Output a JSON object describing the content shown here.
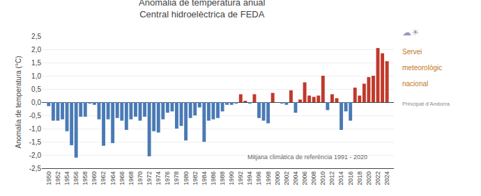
{
  "chart_data": {
    "type": "bar",
    "title": "Anomalia de temperatura anual",
    "subtitle": "Central hidroelèctrica de FEDA",
    "ylabel": "Anomalia de temperatura (°C)",
    "annotations": [
      "Mitjana climàtica de referència 1991 - 2020",
      "☁☀",
      "Servei",
      "meteorològic",
      "nacional",
      "Principat d’Andorra"
    ],
    "x": [
      1950,
      1951,
      1952,
      1953,
      1954,
      1955,
      1956,
      1957,
      1958,
      1959,
      1960,
      1961,
      1962,
      1963,
      1964,
      1965,
      1966,
      1967,
      1968,
      1969,
      1970,
      1971,
      1972,
      1973,
      1974,
      1975,
      1976,
      1977,
      1978,
      1979,
      1980,
      1981,
      1982,
      1983,
      1984,
      1985,
      1986,
      1987,
      1988,
      1989,
      1990,
      1991,
      1992,
      1993,
      1994,
      1995,
      1996,
      1997,
      1998,
      1999,
      2000,
      2001,
      2002,
      2003,
      2004,
      2005,
      2006,
      2007,
      2008,
      2009,
      2010,
      2011,
      2012,
      2013,
      2014,
      2015,
      2016,
      2017,
      2018,
      2019,
      2020,
      2021,
      2022,
      2023,
      2024
    ],
    "values": [
      -0.15,
      -0.7,
      -0.7,
      -0.65,
      -1.1,
      -1.63,
      -2.1,
      -0.55,
      -0.55,
      -0.05,
      -0.1,
      -0.65,
      -1.65,
      -0.65,
      -1.55,
      -0.6,
      -0.7,
      -1.05,
      -0.65,
      -0.55,
      -0.7,
      -0.55,
      -2.05,
      -1.1,
      -1.15,
      -0.65,
      -0.4,
      -0.35,
      -1.0,
      -0.9,
      -1.45,
      -0.6,
      -0.5,
      -0.2,
      -1.5,
      -0.7,
      -0.65,
      -0.6,
      -0.35,
      -0.1,
      -0.1,
      -0.05,
      0.3,
      0.05,
      -0.05,
      0.3,
      -0.6,
      -0.7,
      -0.8,
      0.35,
      0.0,
      -0.05,
      -0.1,
      0.45,
      -0.4,
      0.1,
      0.75,
      0.25,
      0.2,
      0.25,
      1.0,
      -0.3,
      0.3,
      0.15,
      -1.05,
      -0.35,
      -0.7,
      0.55,
      0.25,
      0.7,
      0.95,
      1.0,
      2.05,
      1.85,
      1.55
    ],
    "colors": [
      "#4a7ab5",
      "#4a7ab5",
      "#4a7ab5",
      "#4a7ab5",
      "#4a7ab5",
      "#4a7ab5",
      "#4a7ab5",
      "#4a7ab5",
      "#4a7ab5",
      "#4a7ab5",
      "#4a7ab5",
      "#4a7ab5",
      "#4a7ab5",
      "#4a7ab5",
      "#4a7ab5",
      "#4a7ab5",
      "#4a7ab5",
      "#4a7ab5",
      "#4a7ab5",
      "#4a7ab5",
      "#4a7ab5",
      "#4a7ab5",
      "#4a7ab5",
      "#4a7ab5",
      "#4a7ab5",
      "#4a7ab5",
      "#4a7ab5",
      "#4a7ab5",
      "#4a7ab5",
      "#4a7ab5",
      "#4a7ab5",
      "#4a7ab5",
      "#4a7ab5",
      "#4a7ab5",
      "#4a7ab5",
      "#4a7ab5",
      "#4a7ab5",
      "#4a7ab5",
      "#4a7ab5",
      "#4a7ab5",
      "#4a7ab5",
      "#4a7ab5",
      "#c0392b",
      "#c0392b",
      "#4a7ab5",
      "#c0392b",
      "#4a7ab5",
      "#4a7ab5",
      "#4a7ab5",
      "#c0392b",
      "#c0392b",
      "#4a7ab5",
      "#4a7ab5",
      "#c0392b",
      "#4a7ab5",
      "#c0392b",
      "#c0392b",
      "#c0392b",
      "#c0392b",
      "#c0392b",
      "#c0392b",
      "#4a7ab5",
      "#c0392b",
      "#c0392b",
      "#4a7ab5",
      "#4a7ab5",
      "#4a7ab5",
      "#c0392b",
      "#c0392b",
      "#c0392b",
      "#c0392b",
      "#c0392b",
      "#c0392b",
      "#c0392b",
      "#c0392b"
    ],
    "xlim": [
      1948.5,
      2025.5
    ],
    "xticks": [
      1950,
      1952,
      1954,
      1956,
      1958,
      1960,
      1962,
      1964,
      1966,
      1968,
      1970,
      1972,
      1974,
      1976,
      1978,
      1980,
      1982,
      1984,
      1986,
      1988,
      1990,
      1992,
      1994,
      1996,
      1998,
      2000,
      2002,
      2004,
      2006,
      2008,
      2010,
      2012,
      2014,
      2016,
      2018,
      2020,
      2022,
      2024
    ],
    "ylim": [
      -2.5,
      2.5
    ],
    "yticks": [
      {
        "value": -2.5,
        "label": "-2,5"
      },
      {
        "value": -2.0,
        "label": "-2,0"
      },
      {
        "value": -1.5,
        "label": "-1,5"
      },
      {
        "value": -1.0,
        "label": "-1,0"
      },
      {
        "value": -0.5,
        "label": "-0,5"
      },
      {
        "value": 0.0,
        "label": "0,0"
      },
      {
        "value": 0.5,
        "label": "0,5"
      },
      {
        "value": 1.0,
        "label": "1,0"
      },
      {
        "value": 1.5,
        "label": "1,5"
      },
      {
        "value": 2.0,
        "label": "2,0"
      },
      {
        "value": 2.5,
        "label": "2,5"
      }
    ],
    "grid": true
  }
}
